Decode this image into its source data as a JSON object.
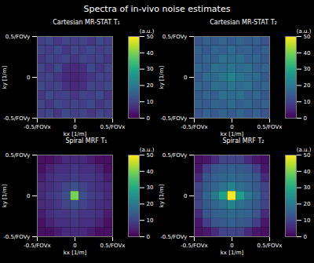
{
  "title": "Spectra of in-vivo noise estimates",
  "chart_data": [
    {
      "type": "heatmap",
      "title": "Cartesian MR-STAT T₁",
      "x_label": "kx [1/m]",
      "y_label": "ky [1/m]",
      "xlim": [
        -0.5,
        0.5
      ],
      "ylim": [
        -0.5,
        0.5
      ],
      "xticks": [
        {
          "value": -0.5,
          "label": "-0.5/FOVx"
        },
        0,
        {
          "value": 0.5,
          "label": "0.5/FOVx"
        }
      ],
      "yticks": [
        {
          "value": -0.5,
          "label": "-0.5/FOVy"
        },
        0,
        {
          "value": 0.5,
          "label": "0.5/FOVy"
        }
      ],
      "x_edges": [
        -0.5,
        -0.3889,
        -0.2778,
        -0.1667,
        -0.0556,
        0.0556,
        0.1667,
        0.2778,
        0.3889,
        0.5
      ],
      "y_edges": [
        -0.5,
        -0.3889,
        -0.2778,
        -0.1667,
        -0.0556,
        0.0556,
        0.1667,
        0.2778,
        0.3889,
        0.5
      ],
      "values": [
        [
          9,
          10,
          8,
          11,
          9,
          10,
          8,
          10,
          9
        ],
        [
          10,
          8,
          11,
          9,
          10,
          9,
          11,
          8,
          10
        ],
        [
          8,
          11,
          9,
          10,
          8,
          10,
          9,
          11,
          8
        ],
        [
          11,
          9,
          10,
          7,
          6,
          7,
          10,
          9,
          11
        ],
        [
          9,
          10,
          8,
          6,
          5,
          6,
          8,
          10,
          9
        ],
        [
          10,
          8,
          11,
          7,
          6,
          7,
          11,
          8,
          10
        ],
        [
          8,
          10,
          9,
          10,
          8,
          10,
          9,
          10,
          8
        ],
        [
          10,
          9,
          11,
          8,
          10,
          9,
          11,
          9,
          10
        ],
        [
          9,
          11,
          8,
          10,
          9,
          10,
          8,
          11,
          9
        ]
      ],
      "color": "viridis",
      "color_label": "(a.u.)",
      "color_range": [
        0,
        50
      ],
      "color_ticks": [
        0,
        10,
        20,
        30,
        40,
        50
      ]
    },
    {
      "type": "heatmap",
      "title": "Cartesian MR-STAT T₂",
      "x_label": "kx [1/m]",
      "y_label": "ky [1/m]",
      "xlim": [
        -0.5,
        0.5
      ],
      "ylim": [
        -0.5,
        0.5
      ],
      "xticks": [
        {
          "value": -0.5,
          "label": "-0.5/FOVx"
        },
        0,
        {
          "value": 0.5,
          "label": "0.5/FOVx"
        }
      ],
      "yticks": [
        {
          "value": -0.5,
          "label": "-0.5/FOVy"
        },
        0,
        {
          "value": 0.5,
          "label": "0.5/FOVy"
        }
      ],
      "x_edges": [
        -0.5,
        -0.3889,
        -0.2778,
        -0.1667,
        -0.0556,
        0.0556,
        0.1667,
        0.2778,
        0.3889,
        0.5
      ],
      "y_edges": [
        -0.5,
        -0.3889,
        -0.2778,
        -0.1667,
        -0.0556,
        0.0556,
        0.1667,
        0.2778,
        0.3889,
        0.5
      ],
      "values": [
        [
          13,
          15,
          14,
          16,
          14,
          16,
          14,
          15,
          13
        ],
        [
          15,
          14,
          16,
          15,
          17,
          15,
          16,
          14,
          15
        ],
        [
          14,
          16,
          15,
          18,
          17,
          18,
          15,
          16,
          14
        ],
        [
          16,
          15,
          18,
          17,
          19,
          17,
          18,
          15,
          16
        ],
        [
          14,
          17,
          17,
          19,
          22,
          19,
          17,
          17,
          14
        ],
        [
          16,
          15,
          18,
          17,
          19,
          17,
          18,
          15,
          16
        ],
        [
          14,
          16,
          15,
          18,
          17,
          18,
          15,
          16,
          14
        ],
        [
          15,
          14,
          16,
          15,
          17,
          15,
          16,
          14,
          15
        ],
        [
          13,
          15,
          14,
          16,
          14,
          16,
          14,
          15,
          13
        ]
      ],
      "color": "viridis",
      "color_label": "(a.u.)",
      "color_range": [
        0,
        50
      ],
      "color_ticks": [
        0,
        10,
        20,
        30,
        40,
        50
      ]
    },
    {
      "type": "heatmap",
      "title": "Spiral MRF T₁",
      "x_label": "kx [1/m]",
      "y_label": "ky [1/m]",
      "xlim": [
        -0.5,
        0.5
      ],
      "ylim": [
        -0.5,
        0.5
      ],
      "xticks": [
        {
          "value": -0.5,
          "label": "-0.5/FOVx"
        },
        0,
        {
          "value": 0.5,
          "label": "0.5/FOVx"
        }
      ],
      "yticks": [
        {
          "value": -0.5,
          "label": "-0.5/FOVy"
        },
        0,
        {
          "value": 0.5,
          "label": "0.5/FOVy"
        }
      ],
      "x_edges": [
        -0.5,
        -0.3889,
        -0.2778,
        -0.1667,
        -0.0556,
        0.0556,
        0.1667,
        0.2778,
        0.3889,
        0.5
      ],
      "y_edges": [
        -0.5,
        -0.3889,
        -0.2778,
        -0.1667,
        -0.0556,
        0.0556,
        0.1667,
        0.2778,
        0.3889,
        0.5
      ],
      "values": [
        [
          2,
          2,
          4,
          6,
          6,
          6,
          4,
          2,
          2
        ],
        [
          2,
          5,
          7,
          7,
          8,
          7,
          7,
          5,
          2
        ],
        [
          4,
          7,
          8,
          8,
          9,
          8,
          8,
          7,
          4
        ],
        [
          6,
          7,
          8,
          10,
          12,
          10,
          8,
          7,
          6
        ],
        [
          6,
          8,
          9,
          12,
          40,
          12,
          9,
          8,
          6
        ],
        [
          6,
          7,
          8,
          10,
          12,
          10,
          8,
          7,
          6
        ],
        [
          4,
          7,
          8,
          8,
          9,
          8,
          8,
          7,
          4
        ],
        [
          2,
          5,
          7,
          7,
          8,
          7,
          7,
          5,
          2
        ],
        [
          2,
          2,
          4,
          6,
          6,
          6,
          4,
          2,
          2
        ]
      ],
      "color": "viridis",
      "color_label": "(a.u.)",
      "color_range": [
        0,
        50
      ],
      "color_ticks": [
        0,
        10,
        20,
        30,
        40,
        50
      ]
    },
    {
      "type": "heatmap",
      "title": "Spiral MRF T₂",
      "x_label": "kx [1/m]",
      "y_label": "ky [1/m]",
      "xlim": [
        -0.5,
        0.5
      ],
      "ylim": [
        -0.5,
        0.5
      ],
      "xticks": [
        {
          "value": -0.5,
          "label": "-0.5/FOVx"
        },
        0,
        {
          "value": 0.5,
          "label": "0.5/FOVx"
        }
      ],
      "yticks": [
        {
          "value": -0.5,
          "label": "-0.5/FOVy"
        },
        0,
        {
          "value": 0.5,
          "label": "0.5/FOVy"
        }
      ],
      "x_edges": [
        -0.5,
        -0.3889,
        -0.2778,
        -0.1667,
        -0.0556,
        0.0556,
        0.1667,
        0.2778,
        0.3889,
        0.5
      ],
      "y_edges": [
        -0.5,
        -0.3889,
        -0.2778,
        -0.1667,
        -0.0556,
        0.0556,
        0.1667,
        0.2778,
        0.3889,
        0.5
      ],
      "values": [
        [
          2,
          3,
          6,
          10,
          10,
          10,
          6,
          3,
          2
        ],
        [
          3,
          9,
          13,
          14,
          15,
          14,
          13,
          9,
          3
        ],
        [
          6,
          13,
          15,
          16,
          17,
          16,
          15,
          13,
          6
        ],
        [
          10,
          14,
          16,
          18,
          22,
          18,
          16,
          14,
          10
        ],
        [
          10,
          16,
          20,
          28,
          50,
          28,
          20,
          16,
          10
        ],
        [
          10,
          14,
          16,
          18,
          22,
          18,
          16,
          14,
          10
        ],
        [
          6,
          13,
          15,
          16,
          17,
          16,
          15,
          13,
          6
        ],
        [
          3,
          9,
          13,
          14,
          15,
          14,
          13,
          9,
          3
        ],
        [
          2,
          3,
          6,
          10,
          10,
          10,
          6,
          3,
          2
        ]
      ],
      "color": "viridis",
      "color_label": "(a.u.)",
      "color_range": [
        0,
        50
      ],
      "color_ticks": [
        0,
        10,
        20,
        30,
        40,
        50
      ]
    }
  ]
}
